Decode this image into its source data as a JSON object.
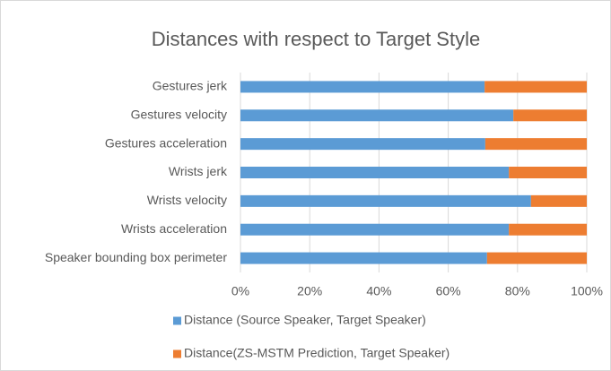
{
  "chart_data": {
    "type": "stacked_bar_horizontal",
    "title": "Distances with respect to Target Style",
    "categories": [
      "Gestures jerk",
      "Gestures velocity",
      "Gestures acceleration",
      "Wrists jerk",
      "Wrists velocity",
      "Wrists acceleration",
      "Speaker bounding box perimeter"
    ],
    "series": [
      {
        "name": "Distance (Source Speaker, Target Speaker)",
        "color": "#5b9bd5",
        "values": [
          70.5,
          78.8,
          70.7,
          77.5,
          83.9,
          77.5,
          71.2
        ]
      },
      {
        "name": "Distance(ZS-MSTM Prediction, Target Speaker)",
        "color": "#ed7d31",
        "values": [
          29.5,
          21.2,
          29.3,
          22.5,
          16.1,
          22.5,
          28.8
        ]
      }
    ],
    "xlim": [
      0,
      100
    ],
    "xticks": [
      {
        "value": 0,
        "label": "0%"
      },
      {
        "value": 20,
        "label": "20%"
      },
      {
        "value": 40,
        "label": "40%"
      },
      {
        "value": 60,
        "label": "60%"
      },
      {
        "value": 80,
        "label": "80%"
      },
      {
        "value": 100,
        "label": "100%"
      }
    ],
    "grid": true
  }
}
